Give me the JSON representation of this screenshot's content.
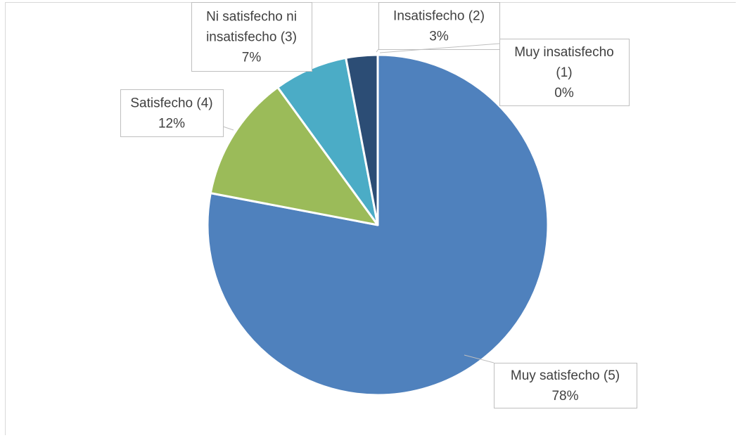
{
  "chart_data": {
    "type": "pie",
    "title": "",
    "slices": [
      {
        "label_lines": [
          "Muy satisfecho (5)"
        ],
        "percent_label": "78%",
        "value": 78,
        "color": "#4f81bd"
      },
      {
        "label_lines": [
          "Satisfecho (4)"
        ],
        "percent_label": "12%",
        "value": 12,
        "color": "#9bbb59"
      },
      {
        "label_lines": [
          "Ni satisfecho ni",
          "insatisfecho (3)"
        ],
        "percent_label": "7%",
        "value": 7,
        "color": "#4bacc6"
      },
      {
        "label_lines": [
          "Insatisfecho (2)"
        ],
        "percent_label": "3%",
        "value": 3,
        "color": "#2c4d75"
      },
      {
        "label_lines": [
          "Muy insatisfecho",
          "(1)"
        ],
        "percent_label": "0%",
        "value": 0,
        "color": "#c0504d"
      }
    ]
  }
}
